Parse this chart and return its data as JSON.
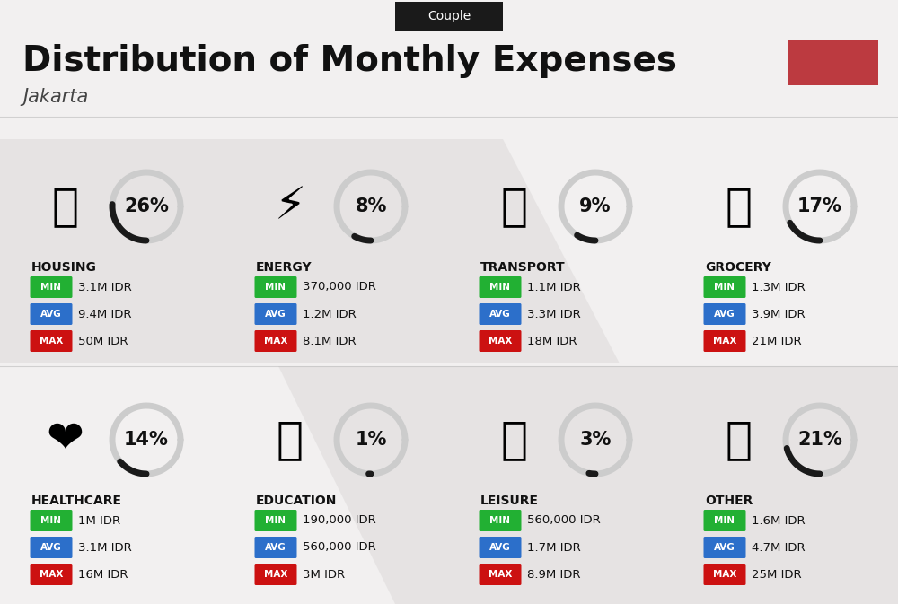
{
  "title": "Distribution of Monthly Expenses",
  "subtitle": "Jakarta",
  "tag": "Couple",
  "tag_bg": "#1a1a1a",
  "tag_fg": "#ffffff",
  "accent_color": "#bc3a40",
  "bg_color": "#f2f0f0",
  "categories": [
    {
      "name": "HOUSING",
      "pct": 26,
      "min": "3.1M IDR",
      "avg": "9.4M IDR",
      "max": "50M IDR",
      "col": 0,
      "row": 0,
      "emoji": "🏗"
    },
    {
      "name": "ENERGY",
      "pct": 8,
      "min": "370,000 IDR",
      "avg": "1.2M IDR",
      "max": "8.1M IDR",
      "col": 1,
      "row": 0,
      "emoji": "⚡"
    },
    {
      "name": "TRANSPORT",
      "pct": 9,
      "min": "1.1M IDR",
      "avg": "3.3M IDR",
      "max": "18M IDR",
      "col": 2,
      "row": 0,
      "emoji": "🚌"
    },
    {
      "name": "GROCERY",
      "pct": 17,
      "min": "1.3M IDR",
      "avg": "3.9M IDR",
      "max": "21M IDR",
      "col": 3,
      "row": 0,
      "emoji": "🛒"
    },
    {
      "name": "HEALTHCARE",
      "pct": 14,
      "min": "1M IDR",
      "avg": "3.1M IDR",
      "max": "16M IDR",
      "col": 0,
      "row": 1,
      "emoji": "❤️"
    },
    {
      "name": "EDUCATION",
      "pct": 1,
      "min": "190,000 IDR",
      "avg": "560,000 IDR",
      "max": "3M IDR",
      "col": 1,
      "row": 1,
      "emoji": "🎓"
    },
    {
      "name": "LEISURE",
      "pct": 3,
      "min": "560,000 IDR",
      "avg": "1.7M IDR",
      "max": "8.9M IDR",
      "col": 2,
      "row": 1,
      "emoji": "🛍"
    },
    {
      "name": "OTHER",
      "pct": 21,
      "min": "1.6M IDR",
      "avg": "4.7M IDR",
      "max": "25M IDR",
      "col": 3,
      "row": 1,
      "emoji": "💰"
    }
  ],
  "min_color": "#22b033",
  "avg_color": "#2c6fca",
  "max_color": "#cc1111",
  "label_color": "#ffffff",
  "ring_color_filled": "#1a1a1a",
  "ring_color_empty": "#cccccc",
  "ring_linewidth": 5,
  "pct_fontsize": 15,
  "cat_fontsize": 10,
  "val_fontsize": 9.5,
  "badge_fontsize": 7.5
}
